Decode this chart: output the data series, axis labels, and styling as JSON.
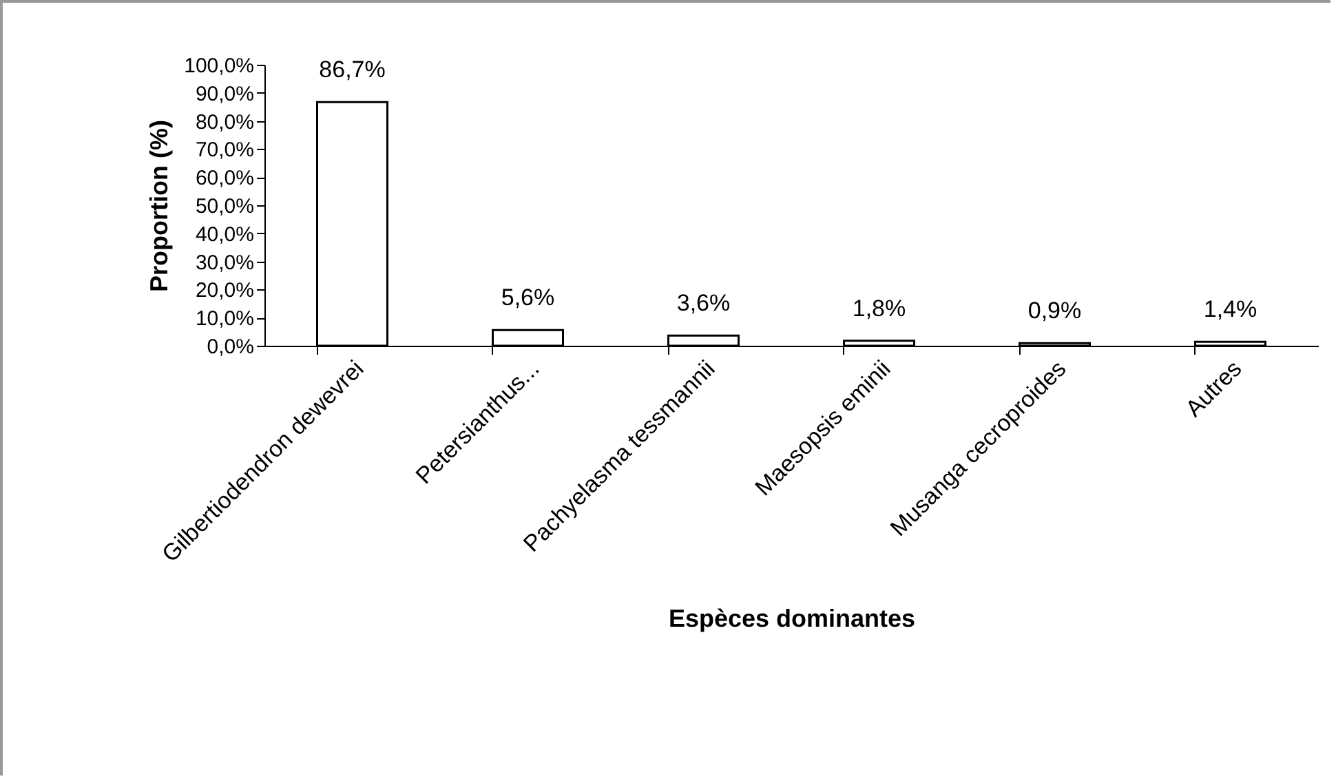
{
  "chart_data": {
    "type": "bar",
    "xlabel": "Espèces dominantes",
    "ylabel": "Proportion (%)",
    "categories": [
      "Gilbertiodendron dewevrei",
      "Petersianthus...",
      "Pachyelasma tessmannii",
      "Maesopsis eminii",
      "Musanga cecroproides",
      "Autres"
    ],
    "values": [
      86.7,
      5.6,
      3.6,
      1.8,
      0.9,
      1.4
    ],
    "value_labels": [
      "86,7%",
      "5,6%",
      "3,6%",
      "1,8%",
      "0,9%",
      "1,4%"
    ],
    "color": "#ffffff",
    "ylim": [
      0,
      100
    ],
    "yticks": [
      {
        "value": 0,
        "label": "0,0%"
      },
      {
        "value": 10,
        "label": "10,0%"
      },
      {
        "value": 20,
        "label": "20,0%"
      },
      {
        "value": 30,
        "label": "30,0%"
      },
      {
        "value": 40,
        "label": "40,0%"
      },
      {
        "value": 50,
        "label": "50,0%"
      },
      {
        "value": 60,
        "label": "60,0%"
      },
      {
        "value": 70,
        "label": "70,0%"
      },
      {
        "value": 80,
        "label": "80,0%"
      },
      {
        "value": 90,
        "label": "90,0%"
      },
      {
        "value": 100,
        "label": "100,0%"
      }
    ],
    "grid": false
  }
}
